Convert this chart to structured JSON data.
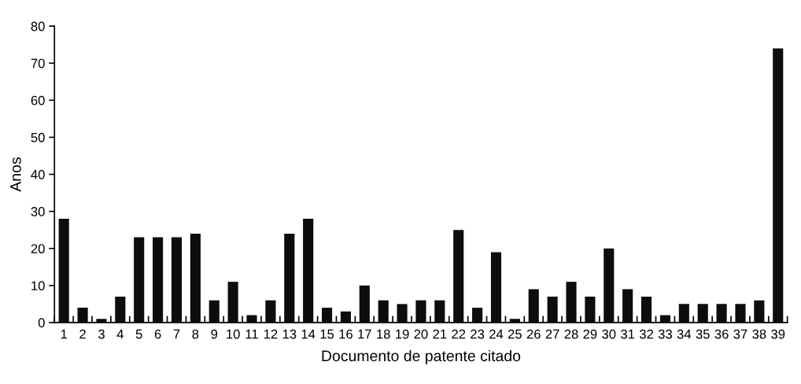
{
  "chart_data": {
    "type": "bar",
    "xlabel": "Documento de patente citado",
    "ylabel": "Anos",
    "categories": [
      "1",
      "2",
      "3",
      "4",
      "5",
      "6",
      "7",
      "8",
      "9",
      "10",
      "11",
      "12",
      "13",
      "14",
      "15",
      "16",
      "17",
      "18",
      "19",
      "20",
      "21",
      "22",
      "23",
      "24",
      "25",
      "26",
      "27",
      "28",
      "29",
      "30",
      "31",
      "32",
      "33",
      "34",
      "35",
      "36",
      "37",
      "38",
      "39"
    ],
    "values": [
      28,
      4,
      1,
      7,
      23,
      23,
      23,
      24,
      6,
      11,
      2,
      6,
      24,
      28,
      4,
      3,
      10,
      6,
      5,
      6,
      6,
      25,
      4,
      19,
      1,
      9,
      7,
      11,
      7,
      20,
      9,
      7,
      2,
      5,
      5,
      5,
      5,
      6,
      74
    ],
    "color": "#0d0d0d",
    "ylim": [
      0,
      80
    ],
    "yticks": [
      0,
      10,
      20,
      30,
      40,
      50,
      60,
      70,
      80
    ],
    "grid": false,
    "legend": false
  }
}
